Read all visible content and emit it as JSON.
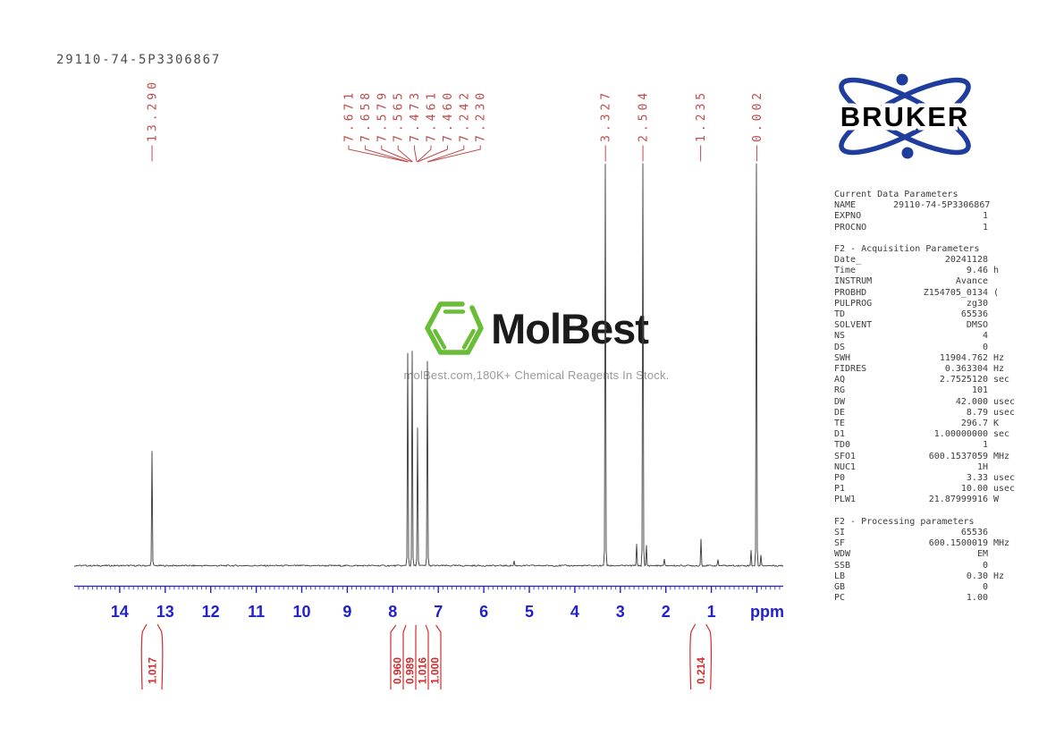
{
  "title": "29110-74-5P3306867",
  "colors": {
    "peak_label_red": "#c14a4a",
    "integral_red": "#d22d2d",
    "axis_blue": "#2222cc",
    "spectrum_line": "#3a3a3a",
    "bruker_blue": "#1e3d9c",
    "molbest_green": "#69bd37",
    "watermark_gray": "#9b9b9b"
  },
  "watermark": {
    "brand": "MolBest",
    "tagline": "molBest.com,180K+ Chemical Reagents In Stock.",
    "icon": "benzene-hexagon-icon"
  },
  "bruker": {
    "label": "BRUKER"
  },
  "parameters": {
    "sections": [
      {
        "heading": "Current Data Parameters",
        "rows": [
          [
            "NAME",
            "29110-74-5P3306867",
            ""
          ],
          [
            "EXPNO",
            "1",
            ""
          ],
          [
            "PROCNO",
            "1",
            ""
          ]
        ]
      },
      {
        "heading": "F2 - Acquisition Parameters",
        "rows": [
          [
            "Date_",
            "20241128",
            ""
          ],
          [
            "Time",
            "9.46",
            "h"
          ],
          [
            "INSTRUM",
            "Avance",
            ""
          ],
          [
            "PROBHD",
            "Z154705_0134",
            "("
          ],
          [
            "PULPROG",
            "zg30",
            ""
          ],
          [
            "TD",
            "65536",
            ""
          ],
          [
            "SOLVENT",
            "DMSO",
            ""
          ],
          [
            "NS",
            "4",
            ""
          ],
          [
            "DS",
            "0",
            ""
          ],
          [
            "SWH",
            "11904.762",
            "Hz"
          ],
          [
            "FIDRES",
            "0.363304",
            "Hz"
          ],
          [
            "AQ",
            "2.7525120",
            "sec"
          ],
          [
            "RG",
            "101",
            ""
          ],
          [
            "DW",
            "42.000",
            "usec"
          ],
          [
            "DE",
            "8.79",
            "usec"
          ],
          [
            "TE",
            "296.7",
            "K"
          ],
          [
            "D1",
            "1.00000000",
            "sec"
          ],
          [
            "TD0",
            "1",
            ""
          ],
          [
            "SFO1",
            "600.1537059",
            "MHz"
          ],
          [
            "NUC1",
            "1H",
            ""
          ],
          [
            "P0",
            "3.33",
            "usec"
          ],
          [
            "P1",
            "10.00",
            "usec"
          ],
          [
            "PLW1",
            "21.87999916",
            "W"
          ]
        ]
      },
      {
        "heading": "F2 - Processing parameters",
        "rows": [
          [
            "SI",
            "65536",
            ""
          ],
          [
            "SF",
            "600.1500019",
            "MHz"
          ],
          [
            "WDW",
            "EM",
            ""
          ],
          [
            "SSB",
            "0",
            ""
          ],
          [
            "LB",
            "0.30",
            "Hz"
          ],
          [
            "GB",
            "0",
            ""
          ],
          [
            "PC",
            "1.00",
            ""
          ]
        ]
      }
    ]
  },
  "chart_data": {
    "type": "line",
    "title": "1H NMR spectrum 29110-74-5P3306867",
    "xlabel": "ppm",
    "x_axis": {
      "min": -0.56,
      "max": 15.0,
      "major_ticks": [
        14,
        13,
        12,
        11,
        10,
        9,
        8,
        7,
        6,
        5,
        4,
        3,
        2,
        1,
        0
      ],
      "labeled_ticks": [
        14,
        13,
        12,
        11,
        10,
        9,
        8,
        7,
        6,
        5,
        4,
        3,
        2,
        1
      ],
      "minor_tick_step": 0.1,
      "unit_label": "ppm"
    },
    "peak_labels": [
      {
        "text": "13.290",
        "ppm": 13.29
      },
      {
        "text": "7.671",
        "ppm": 7.671
      },
      {
        "text": "7.658",
        "ppm": 7.658
      },
      {
        "text": "7.579",
        "ppm": 7.579
      },
      {
        "text": "7.565",
        "ppm": 7.565
      },
      {
        "text": "7.473",
        "ppm": 7.473
      },
      {
        "text": "7.461",
        "ppm": 7.461
      },
      {
        "text": "7.460",
        "ppm": 7.46
      },
      {
        "text": "7.242",
        "ppm": 7.242
      },
      {
        "text": "7.230",
        "ppm": 7.23
      },
      {
        "text": "3.327",
        "ppm": 3.327
      },
      {
        "text": "2.504",
        "ppm": 2.504
      },
      {
        "text": "1.235",
        "ppm": 1.235
      },
      {
        "text": "0.002",
        "ppm": 0.002
      }
    ],
    "peaks": [
      {
        "ppm": 13.29,
        "h": 0.287
      },
      {
        "ppm": 7.665,
        "h": 0.53
      },
      {
        "ppm": 7.572,
        "h": 0.533
      },
      {
        "ppm": 7.465,
        "h": 0.345
      },
      {
        "ppm": 7.236,
        "h": 0.51
      },
      {
        "ppm": 5.33,
        "h": 0.012
      },
      {
        "ppm": 3.327,
        "h": 1.0
      },
      {
        "ppm": 2.64,
        "h": 0.055
      },
      {
        "ppm": 2.504,
        "h": 1.0
      },
      {
        "ppm": 2.43,
        "h": 0.05
      },
      {
        "ppm": 2.03,
        "h": 0.015
      },
      {
        "ppm": 1.235,
        "h": 0.067
      },
      {
        "ppm": 0.855,
        "h": 0.015
      },
      {
        "ppm": 0.128,
        "h": 0.038
      },
      {
        "ppm": 0.002,
        "h": 1.0
      },
      {
        "ppm": -0.088,
        "h": 0.026
      }
    ],
    "integrals": [
      {
        "value": "1.017",
        "ppm": 13.29
      },
      {
        "value": "0.960",
        "ppm": 7.665
      },
      {
        "value": "0.989",
        "ppm": 7.572
      },
      {
        "value": "1.016",
        "ppm": 7.465
      },
      {
        "value": "1.000",
        "ppm": 7.236
      },
      {
        "value": "0.214",
        "ppm": 1.235
      }
    ]
  }
}
